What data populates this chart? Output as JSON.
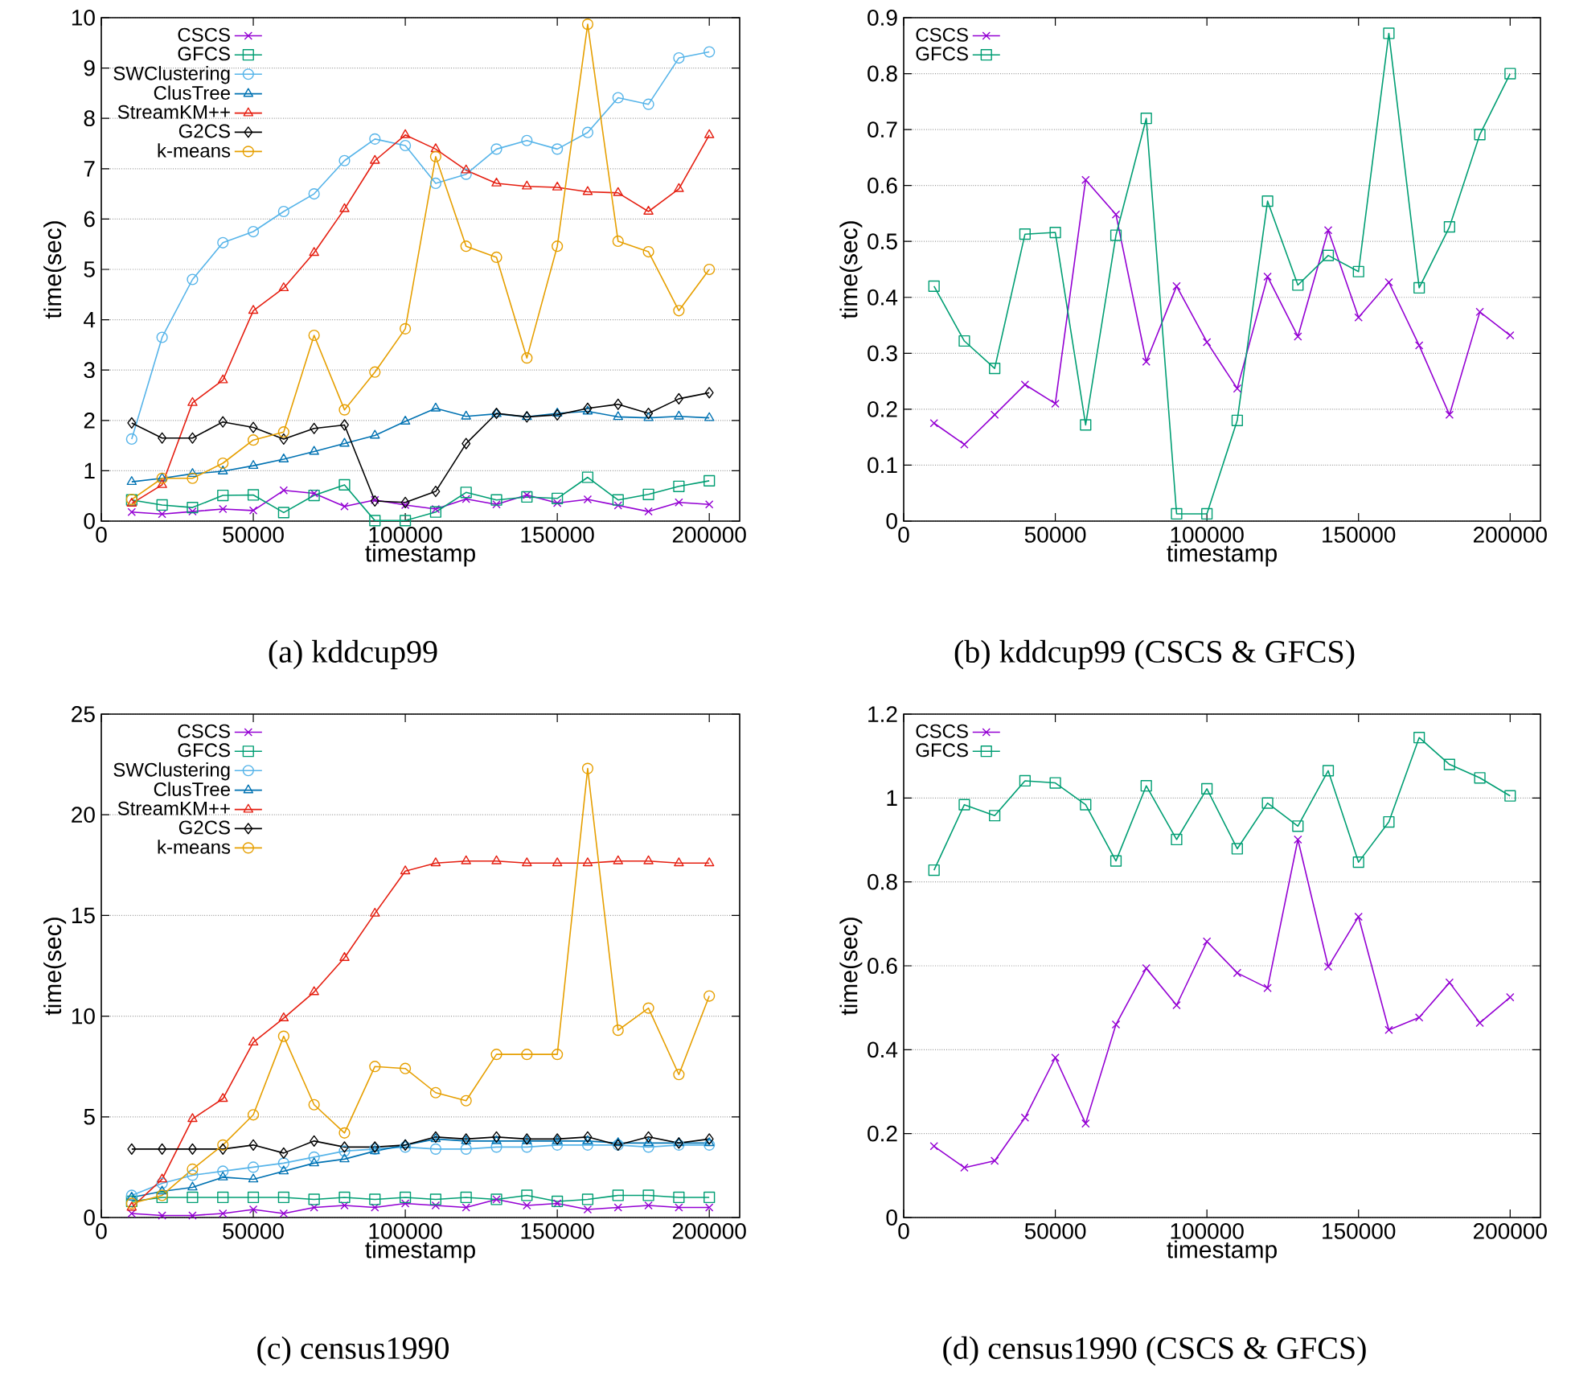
{
  "chart_data": [
    {
      "type": "line",
      "title": "(a) kddcup99",
      "xlabel": "timestamp",
      "ylabel": "time(sec)",
      "x": [
        10000,
        20000,
        30000,
        40000,
        50000,
        60000,
        70000,
        80000,
        90000,
        100000,
        110000,
        120000,
        130000,
        140000,
        150000,
        160000,
        170000,
        180000,
        190000,
        200000
      ],
      "xlim": [
        0,
        210000
      ],
      "xticks": [
        0,
        50000,
        100000,
        150000,
        200000
      ],
      "ylim": [
        0,
        10
      ],
      "yticks": [
        0,
        1,
        2,
        3,
        4,
        5,
        6,
        7,
        8,
        9,
        10
      ],
      "grid": "y",
      "legend": "top left",
      "line_style": "solid",
      "series": [
        {
          "name": "CSCS",
          "color": "#9400d3",
          "marker": "cross",
          "values": [
            0.18,
            0.14,
            0.19,
            0.24,
            0.21,
            0.61,
            0.55,
            0.29,
            0.42,
            0.32,
            0.24,
            0.44,
            0.33,
            0.52,
            0.36,
            0.43,
            0.31,
            0.19,
            0.37,
            0.33
          ]
        },
        {
          "name": "GFCS",
          "color": "#009e73",
          "marker": "square",
          "values": [
            0.42,
            0.32,
            0.27,
            0.51,
            0.52,
            0.17,
            0.51,
            0.72,
            0.01,
            0.01,
            0.18,
            0.57,
            0.42,
            0.48,
            0.45,
            0.87,
            0.42,
            0.53,
            0.69,
            0.8
          ]
        },
        {
          "name": "SWClustering",
          "color": "#56b4e9",
          "marker": "circle",
          "values": [
            1.63,
            3.65,
            4.8,
            5.53,
            5.75,
            6.15,
            6.5,
            7.16,
            7.59,
            7.46,
            6.71,
            6.89,
            7.39,
            7.56,
            7.39,
            7.72,
            8.41,
            8.28,
            9.2,
            9.32
          ]
        },
        {
          "name": "ClusTree",
          "color": "#0072b2",
          "marker": "triangle",
          "values": [
            0.78,
            0.85,
            0.94,
            0.99,
            1.1,
            1.23,
            1.38,
            1.54,
            1.7,
            1.98,
            2.24,
            2.08,
            2.13,
            2.07,
            2.14,
            2.18,
            2.07,
            2.05,
            2.08,
            2.05
          ]
        },
        {
          "name": "StreamKM++",
          "color": "#e51e10",
          "marker": "triangle",
          "values": [
            0.35,
            0.72,
            2.35,
            2.8,
            4.18,
            4.63,
            5.33,
            6.2,
            7.16,
            7.67,
            7.39,
            6.97,
            6.71,
            6.65,
            6.63,
            6.54,
            6.52,
            6.15,
            6.6,
            7.67
          ]
        },
        {
          "name": "G2CS",
          "color": "#000000",
          "marker": "diamond",
          "values": [
            1.95,
            1.65,
            1.65,
            1.97,
            1.86,
            1.63,
            1.84,
            1.91,
            0.4,
            0.37,
            0.59,
            1.54,
            2.14,
            2.07,
            2.11,
            2.24,
            2.32,
            2.14,
            2.43,
            2.55
          ]
        },
        {
          "name": "k-means",
          "color": "#e69f00",
          "marker": "circle",
          "values": [
            0.43,
            0.85,
            0.85,
            1.15,
            1.61,
            1.77,
            3.69,
            2.21,
            2.96,
            3.82,
            7.24,
            5.46,
            5.24,
            3.24,
            5.46,
            9.87,
            5.56,
            5.35,
            4.18,
            5.0
          ]
        }
      ]
    },
    {
      "type": "line",
      "title": "(b) kddcup99 (CSCS & GFCS)",
      "xlabel": "timestamp",
      "ylabel": "time(sec)",
      "x": [
        10000,
        20000,
        30000,
        40000,
        50000,
        60000,
        70000,
        80000,
        90000,
        100000,
        110000,
        120000,
        130000,
        140000,
        150000,
        160000,
        170000,
        180000,
        190000,
        200000
      ],
      "xlim": [
        0,
        210000
      ],
      "xticks": [
        0,
        50000,
        100000,
        150000,
        200000
      ],
      "ylim": [
        0,
        0.9
      ],
      "yticks": [
        0,
        0.1,
        0.2,
        0.3,
        0.4,
        0.5,
        0.6,
        0.7,
        0.8,
        0.9
      ],
      "grid": "y",
      "legend": "top left",
      "line_style": "solid",
      "series": [
        {
          "name": "CSCS",
          "color": "#9400d3",
          "marker": "cross",
          "values": [
            0.175,
            0.137,
            0.19,
            0.244,
            0.21,
            0.61,
            0.548,
            0.285,
            0.42,
            0.32,
            0.237,
            0.437,
            0.33,
            0.52,
            0.364,
            0.427,
            0.314,
            0.19,
            0.374,
            0.332
          ]
        },
        {
          "name": "GFCS",
          "color": "#009e73",
          "marker": "square",
          "values": [
            0.42,
            0.322,
            0.273,
            0.513,
            0.516,
            0.172,
            0.511,
            0.72,
            0.013,
            0.013,
            0.18,
            0.572,
            0.422,
            0.475,
            0.446,
            0.872,
            0.417,
            0.526,
            0.691,
            0.8
          ]
        }
      ]
    },
    {
      "type": "line",
      "title": "(c) census1990",
      "xlabel": "timestamp",
      "ylabel": "time(sec)",
      "x": [
        10000,
        20000,
        30000,
        40000,
        50000,
        60000,
        70000,
        80000,
        90000,
        100000,
        110000,
        120000,
        130000,
        140000,
        150000,
        160000,
        170000,
        180000,
        190000,
        200000
      ],
      "xlim": [
        0,
        210000
      ],
      "xticks": [
        0,
        50000,
        100000,
        150000,
        200000
      ],
      "ylim": [
        0,
        25
      ],
      "yticks": [
        0,
        5,
        10,
        15,
        20,
        25
      ],
      "grid": "y",
      "legend": "top left",
      "line_style": "solid",
      "series": [
        {
          "name": "CSCS",
          "color": "#9400d3",
          "marker": "cross",
          "values": [
            0.2,
            0.1,
            0.1,
            0.2,
            0.4,
            0.2,
            0.5,
            0.6,
            0.5,
            0.7,
            0.6,
            0.5,
            0.9,
            0.6,
            0.7,
            0.4,
            0.5,
            0.6,
            0.5,
            0.5
          ]
        },
        {
          "name": "GFCS",
          "color": "#009e73",
          "marker": "square",
          "values": [
            0.8,
            1.0,
            1.0,
            1.0,
            1.0,
            1.0,
            0.9,
            1.0,
            0.9,
            1.0,
            0.9,
            1.0,
            0.9,
            1.1,
            0.8,
            0.9,
            1.1,
            1.1,
            1.0,
            1.0
          ]
        },
        {
          "name": "SWClustering",
          "color": "#56b4e9",
          "marker": "circle",
          "values": [
            1.1,
            1.7,
            2.1,
            2.3,
            2.5,
            2.7,
            3.0,
            3.3,
            3.4,
            3.5,
            3.4,
            3.4,
            3.5,
            3.5,
            3.6,
            3.6,
            3.6,
            3.5,
            3.6,
            3.6
          ]
        },
        {
          "name": "ClusTree",
          "color": "#0072b2",
          "marker": "triangle",
          "values": [
            1.0,
            1.3,
            1.5,
            2.0,
            1.9,
            2.3,
            2.7,
            2.9,
            3.3,
            3.6,
            3.9,
            3.8,
            3.8,
            3.8,
            3.8,
            3.8,
            3.7,
            3.7,
            3.7,
            3.7
          ]
        },
        {
          "name": "StreamKM++",
          "color": "#e51e10",
          "marker": "triangle",
          "values": [
            0.5,
            1.9,
            4.9,
            5.9,
            8.7,
            9.9,
            11.2,
            12.9,
            15.1,
            17.2,
            17.6,
            17.7,
            17.7,
            17.6,
            17.6,
            17.6,
            17.7,
            17.7,
            17.6,
            17.6
          ]
        },
        {
          "name": "G2CS",
          "color": "#000000",
          "marker": "diamond",
          "values": [
            3.4,
            3.4,
            3.4,
            3.4,
            3.6,
            3.2,
            3.8,
            3.5,
            3.5,
            3.6,
            4.0,
            3.9,
            4.0,
            3.9,
            3.9,
            4.0,
            3.6,
            4.0,
            3.7,
            3.9
          ]
        },
        {
          "name": "k-means",
          "color": "#e69f00",
          "marker": "circle",
          "values": [
            0.7,
            1.1,
            2.4,
            3.6,
            5.1,
            9.0,
            5.6,
            4.2,
            7.5,
            7.4,
            6.2,
            5.8,
            8.1,
            8.1,
            8.1,
            22.3,
            9.3,
            10.4,
            7.1,
            11.0
          ]
        }
      ]
    },
    {
      "type": "line",
      "title": "(d) census1990 (CSCS & GFCS)",
      "xlabel": "timestamp",
      "ylabel": "time(sec)",
      "x": [
        10000,
        20000,
        30000,
        40000,
        50000,
        60000,
        70000,
        80000,
        90000,
        100000,
        110000,
        120000,
        130000,
        140000,
        150000,
        160000,
        170000,
        180000,
        190000,
        200000
      ],
      "xlim": [
        0,
        210000
      ],
      "xticks": [
        0,
        50000,
        100000,
        150000,
        200000
      ],
      "ylim": [
        0,
        1.2
      ],
      "yticks": [
        0,
        0.2,
        0.4,
        0.6,
        0.8,
        1,
        1.2
      ],
      "grid": "y",
      "legend": "top left",
      "line_style": "solid",
      "series": [
        {
          "name": "CSCS",
          "color": "#9400d3",
          "marker": "cross",
          "values": [
            0.17,
            0.119,
            0.135,
            0.238,
            0.381,
            0.224,
            0.46,
            0.594,
            0.506,
            0.658,
            0.583,
            0.547,
            0.901,
            0.598,
            0.717,
            0.447,
            0.477,
            0.56,
            0.464,
            0.525
          ]
        },
        {
          "name": "GFCS",
          "color": "#009e73",
          "marker": "square",
          "values": [
            0.828,
            0.984,
            0.958,
            1.041,
            1.036,
            0.984,
            0.85,
            1.029,
            0.901,
            1.022,
            0.879,
            0.988,
            0.933,
            1.065,
            0.847,
            0.943,
            1.144,
            1.08,
            1.048,
            1.005
          ]
        }
      ]
    }
  ]
}
